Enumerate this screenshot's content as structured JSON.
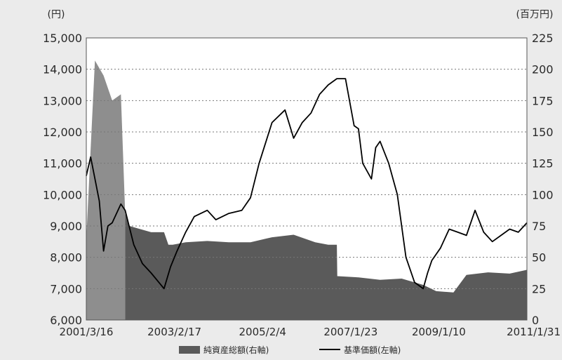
{
  "chart_data": {
    "type": "area+line",
    "left_axis_unit": "(円)",
    "right_axis_unit": "(百万円)",
    "left_ylim": [
      6000,
      15000
    ],
    "right_ylim": [
      0,
      225
    ],
    "left_ticks": [
      "6,000",
      "7,000",
      "8,000",
      "9,000",
      "10,000",
      "11,000",
      "12,000",
      "13,000",
      "14,000",
      "15,000"
    ],
    "right_ticks": [
      "0",
      "25",
      "50",
      "75",
      "100",
      "125",
      "150",
      "175",
      "200",
      "225"
    ],
    "x_ticks": [
      "2001/3/16",
      "2003/2/17",
      "2005/2/4",
      "2007/1/23",
      "2009/1/10",
      "2011/1/31"
    ],
    "grid": "horizontal dotted",
    "legend_position": "bottom",
    "colors": {
      "area": "#5a5a5a",
      "area_early": "#8e8e8e",
      "line": "#000000",
      "grid": "#777777"
    },
    "series": [
      {
        "name": "純資産総額(右軸)",
        "kind": "area",
        "axis": "right",
        "x": [
          2001.2,
          2001.4,
          2001.6,
          2001.8,
          2002.0,
          2002.1,
          2002.2,
          2002.4,
          2002.7,
          2003.0,
          2003.1,
          2003.2,
          2003.5,
          2004.0,
          2004.5,
          2005.0,
          2005.5,
          2006.0,
          2006.5,
          2006.8,
          2007.0,
          2007.01,
          2007.5,
          2008.0,
          2008.5,
          2009.0,
          2009.3,
          2009.7,
          2010.0,
          2010.5,
          2011.0,
          2011.4
        ],
        "y": [
          65,
          207,
          195,
          175,
          180,
          85,
          75,
          73,
          70,
          70,
          60,
          60,
          62,
          63,
          62,
          62,
          66,
          68,
          62,
          60,
          60,
          35,
          34,
          32,
          33,
          28,
          23,
          22,
          36,
          38,
          37,
          40
        ]
      },
      {
        "name": "基準価額(左軸)",
        "kind": "line",
        "axis": "left",
        "x": [
          2001.2,
          2001.3,
          2001.5,
          2001.6,
          2001.7,
          2001.8,
          2002.0,
          2002.1,
          2002.3,
          2002.5,
          2002.7,
          2003.0,
          2003.15,
          2003.3,
          2003.5,
          2003.7,
          2004.0,
          2004.2,
          2004.5,
          2004.8,
          2005.0,
          2005.2,
          2005.5,
          2005.8,
          2006.0,
          2006.2,
          2006.4,
          2006.6,
          2006.8,
          2007.0,
          2007.2,
          2007.4,
          2007.5,
          2007.6,
          2007.8,
          2007.9,
          2008.0,
          2008.2,
          2008.4,
          2008.6,
          2008.8,
          2009.0,
          2009.1,
          2009.2,
          2009.4,
          2009.6,
          2009.8,
          2010.0,
          2010.2,
          2010.4,
          2010.6,
          2010.8,
          2011.0,
          2011.2,
          2011.4
        ],
        "y": [
          10600,
          11200,
          9800,
          8200,
          9000,
          9100,
          9700,
          9500,
          8400,
          7800,
          7500,
          7000,
          7700,
          8200,
          8800,
          9300,
          9500,
          9200,
          9400,
          9500,
          9900,
          11000,
          12300,
          12700,
          11800,
          12300,
          12600,
          13200,
          13500,
          13700,
          13700,
          12200,
          12100,
          11000,
          10500,
          11500,
          11700,
          11000,
          10000,
          8000,
          7200,
          7000,
          7500,
          7900,
          8300,
          8900,
          8800,
          8700,
          9500,
          8800,
          8500,
          8700,
          8900,
          8800,
          9100
        ]
      }
    ]
  }
}
